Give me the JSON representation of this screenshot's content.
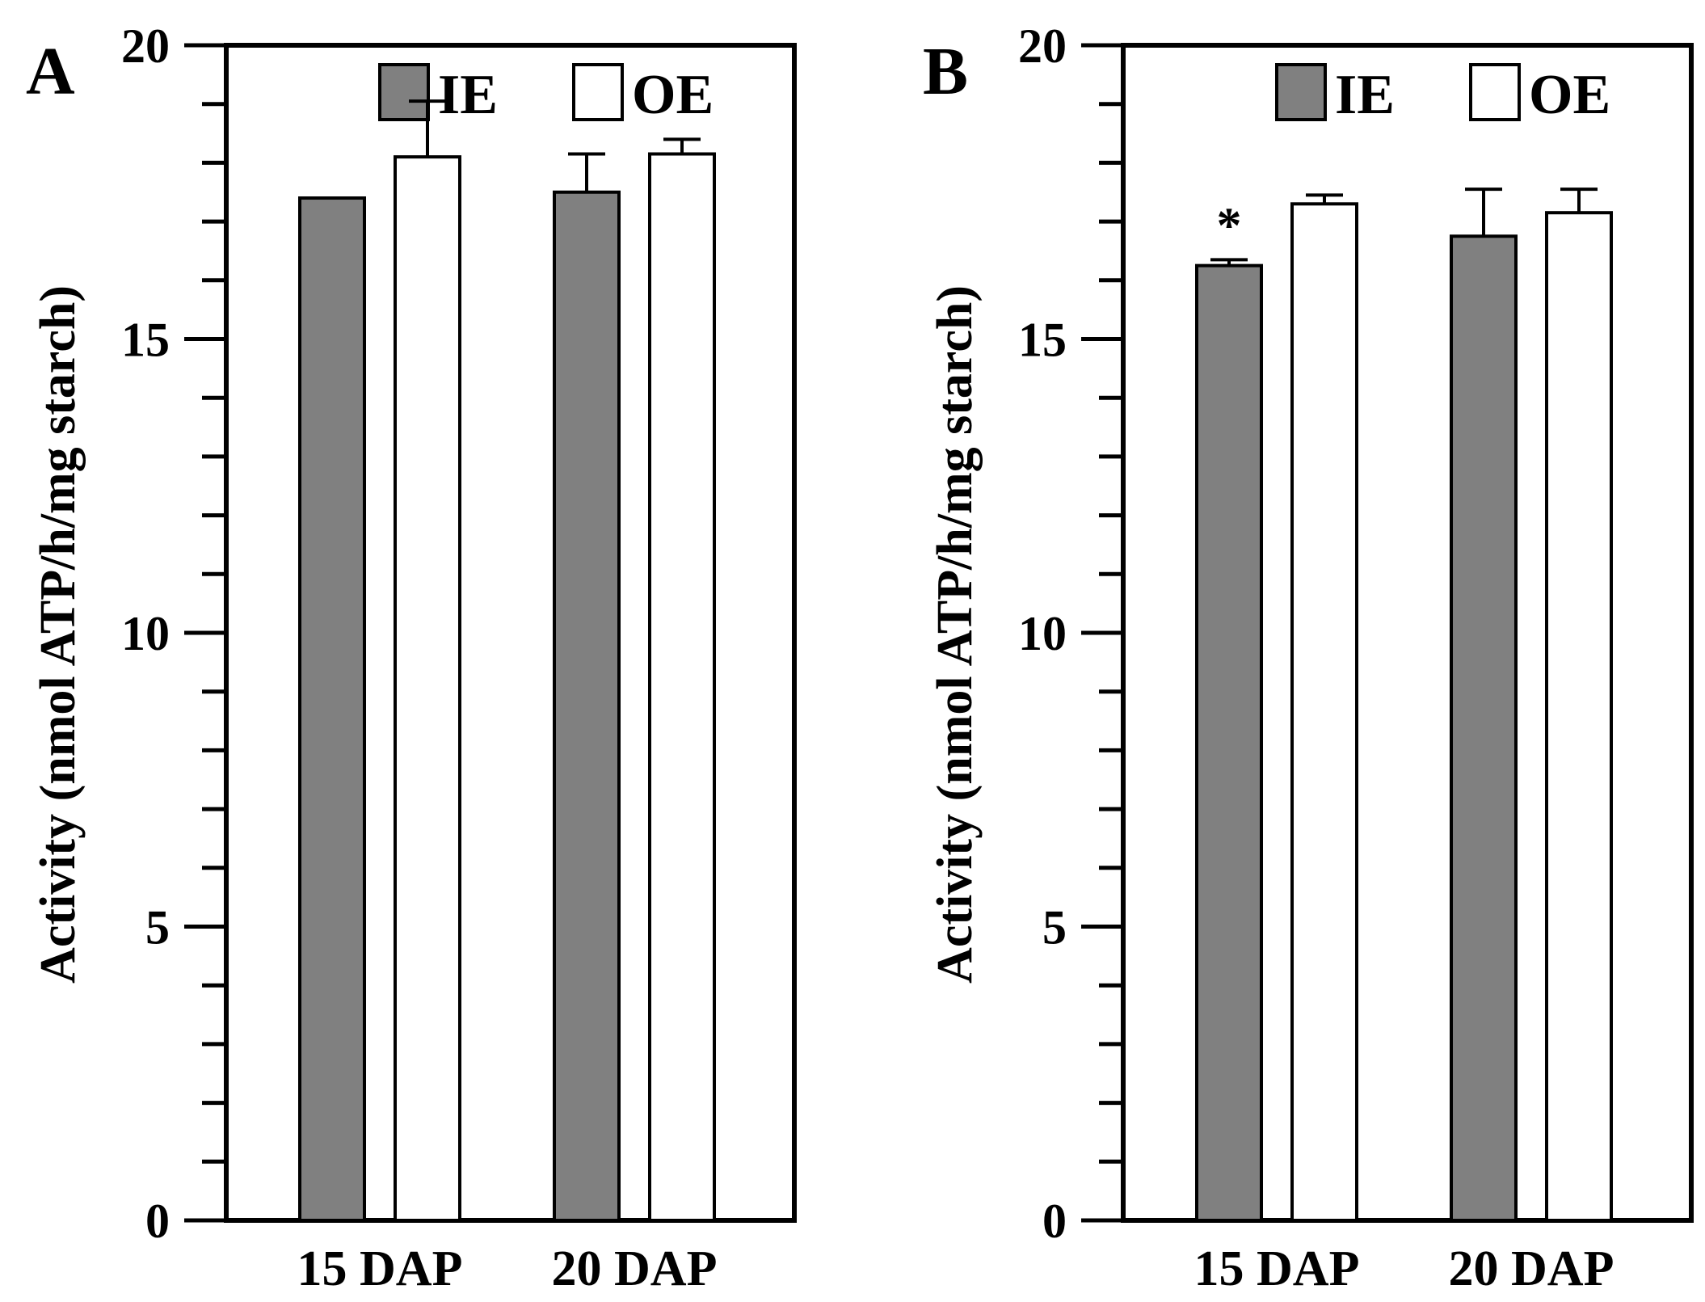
{
  "figure": {
    "ie_color": "#808080",
    "oe_color": "#ffffff",
    "axis_color": "#000000"
  },
  "legend": {
    "ie": "IE",
    "oe": "OE"
  },
  "chart_data": [
    {
      "panel": "A",
      "type": "bar",
      "categories": [
        "15 DAP",
        "20 DAP"
      ],
      "ylabel": "Activity (nmol ATP/h/mg starch)",
      "ylim": [
        0,
        20
      ],
      "yticks": [
        0,
        5,
        10,
        15,
        20
      ],
      "minor_step": 1,
      "series": [
        {
          "name": "IE",
          "values": [
            17.4,
            17.5
          ],
          "errors": [
            0.0,
            0.65
          ]
        },
        {
          "name": "OE",
          "values": [
            18.1,
            18.15
          ],
          "errors": [
            0.95,
            0.25
          ]
        }
      ],
      "significance": [
        "",
        ""
      ]
    },
    {
      "panel": "B",
      "type": "bar",
      "categories": [
        "15 DAP",
        "20 DAP"
      ],
      "ylabel": "Activity (nmol ATP/h/mg starch)",
      "ylim": [
        0,
        20
      ],
      "yticks": [
        0,
        5,
        10,
        15,
        20
      ],
      "minor_step": 1,
      "series": [
        {
          "name": "IE",
          "values": [
            16.25,
            16.75
          ],
          "errors": [
            0.1,
            0.8
          ]
        },
        {
          "name": "OE",
          "values": [
            17.3,
            17.15
          ],
          "errors": [
            0.15,
            0.4
          ]
        }
      ],
      "significance": [
        "*",
        ""
      ]
    }
  ]
}
